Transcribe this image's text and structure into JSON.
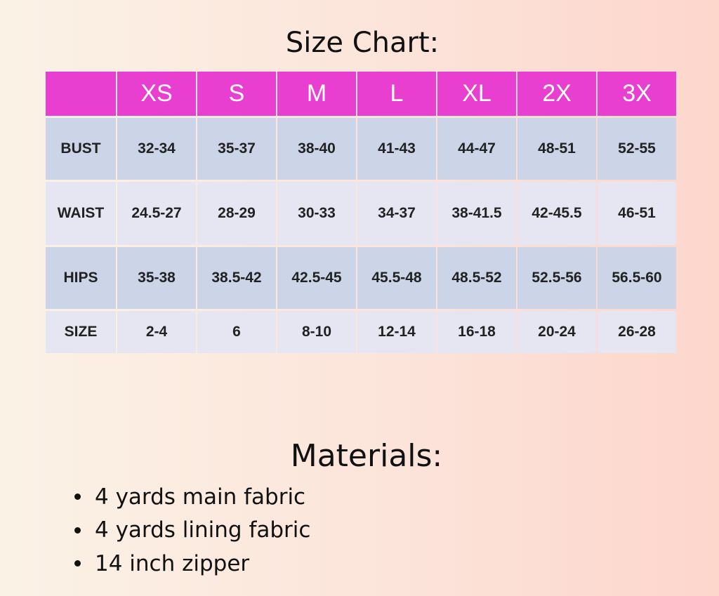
{
  "title": "Size Chart:",
  "table": {
    "header": [
      "XS",
      "S",
      "M",
      "L",
      "XL",
      "2X",
      "3X"
    ],
    "rows": [
      {
        "label": "BUST",
        "cells": [
          "32-34",
          "35-37",
          "38-40",
          "41-43",
          "44-47",
          "48-51",
          "52-55"
        ]
      },
      {
        "label": "WAIST",
        "cells": [
          "24.5-27",
          "28-29",
          "30-33",
          "34-37",
          "38-41.5",
          "42-45.5",
          "46-51"
        ]
      },
      {
        "label": "HIPS",
        "cells": [
          "35-38",
          "38.5-42",
          "42.5-45",
          "45.5-48",
          "48.5-52",
          "52.5-56",
          "56.5-60"
        ]
      },
      {
        "label": "SIZE",
        "cells": [
          "2-4",
          "6",
          "8-10",
          "12-14",
          "16-18",
          "20-24",
          "26-28"
        ]
      }
    ]
  },
  "materials": {
    "title": "Materials:",
    "items": [
      "4 yards main fabric",
      "4 yards lining fabric",
      "14 inch zipper"
    ]
  }
}
